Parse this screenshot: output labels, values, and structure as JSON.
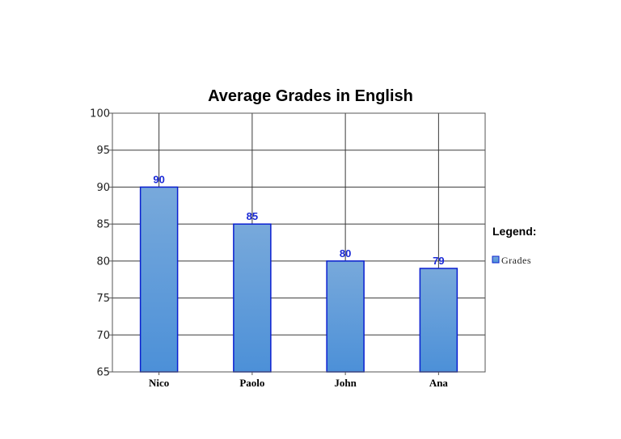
{
  "chart_data": {
    "type": "bar",
    "title": "Average Grades in English",
    "categories": [
      "Nico",
      "Paolo",
      "John",
      "Ana"
    ],
    "series": [
      {
        "name": "Grades",
        "values": [
          90,
          85,
          80,
          79
        ]
      }
    ],
    "xlabel": "",
    "ylabel": "",
    "ylim": [
      65,
      100
    ],
    "yticks": [
      65,
      70,
      75,
      80,
      85,
      90,
      95,
      100
    ],
    "grid": true,
    "legend_title": "Legend:",
    "legend_position": "right",
    "colors": {
      "bar_fill_top": "#78a9db",
      "bar_fill_bottom": "#4c90d8",
      "bar_stroke": "#0a1fd0",
      "data_label": "#1a2ad6",
      "grid": "#3a3a3a",
      "axis": "#555555"
    }
  }
}
